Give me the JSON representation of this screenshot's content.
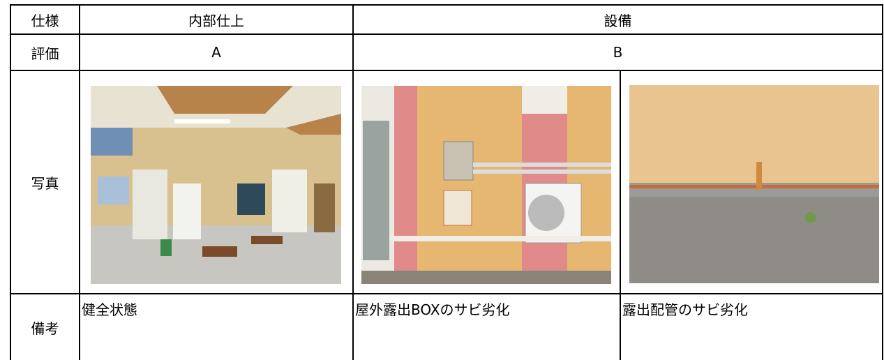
{
  "table": {
    "rows": [
      [
        "仕様",
        "内部仕上",
        "設備"
      ],
      [
        "評価",
        "A",
        "B"
      ],
      [
        "写真"
      ],
      [
        "備考",
        "健全状態",
        "屋外露出BOXのサビ劣化",
        "露出配管のサビ劣化"
      ]
    ]
  }
}
